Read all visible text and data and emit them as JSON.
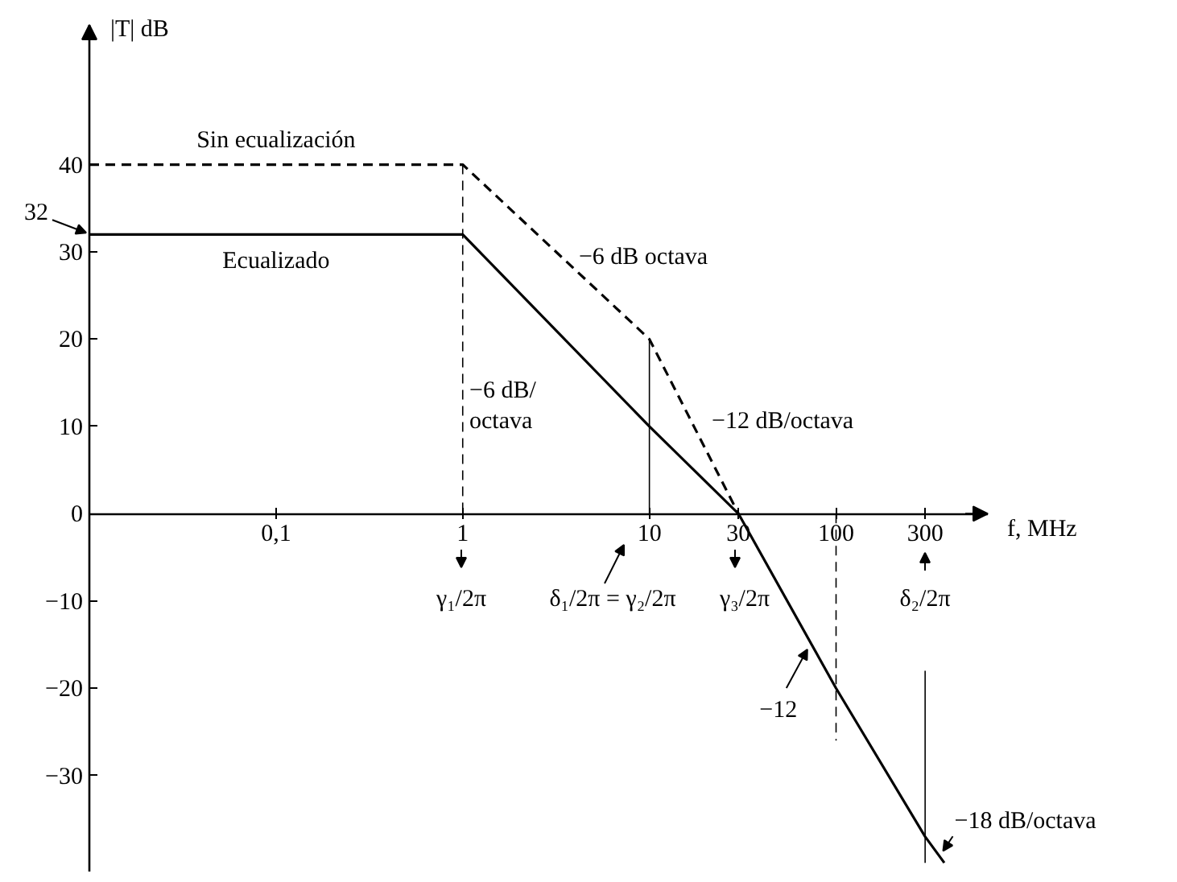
{
  "chart_data": {
    "type": "line",
    "xlabel": "f, MHz",
    "ylabel": "|T| dB",
    "log": "x",
    "xlim": [
      0.01,
      650
    ],
    "ylim": [
      -41,
      56
    ],
    "xticks": [
      {
        "value": 0.1,
        "label": "0,1"
      },
      1,
      10,
      30,
      100,
      300
    ],
    "yticks": [
      {
        "value": -30,
        "label": "−30"
      },
      {
        "value": -20,
        "label": "−20"
      },
      {
        "value": -10,
        "label": "−10"
      },
      0,
      10,
      20,
      30,
      40
    ],
    "series": [
      {
        "name": "Sin ecualización",
        "color": "#000000",
        "line_style": "dashed",
        "x": [
          0.01,
          1,
          10,
          30
        ],
        "values": [
          40,
          40,
          20,
          0
        ]
      },
      {
        "name": "Ecualizado",
        "color": "#000000",
        "line_style": "solid",
        "x": [
          0.01,
          1,
          10,
          30,
          100,
          300,
          380
        ],
        "values": [
          32,
          32,
          10,
          0,
          -20,
          -37,
          -40
        ]
      },
      {
        "color": "#000000",
        "line_style": "dashed",
        "x": [
          1,
          1
        ],
        "values": [
          40,
          0
        ]
      },
      {
        "color": "#000000",
        "line_style": "solid",
        "x": [
          10,
          10
        ],
        "values": [
          20,
          0
        ]
      },
      {
        "color": "#000000",
        "line_style": "dashed",
        "x": [
          100,
          100
        ],
        "values": [
          0,
          -26
        ]
      },
      {
        "color": "#000000",
        "line_style": "solid",
        "x": [
          300,
          300
        ],
        "values": [
          -18,
          -40
        ]
      }
    ],
    "annotations": [
      {
        "text": "32",
        "x": 0.01,
        "y": 32
      },
      {
        "text": "−6 dB octava",
        "x": 3.5,
        "y": 29
      },
      "−6 dB/\noctava",
      {
        "text": "−12 dB/octava",
        "x": 17,
        "y": 10
      },
      {
        "text": "−12",
        "x": 73,
        "y": -15
      },
      {
        "text": "−18 dB/octava",
        "x": 360,
        "y": -39
      },
      "γ₁/2π",
      "δ₁/2π = γ₂/2π",
      "γ₃/2π",
      "δ₂/2π"
    ]
  }
}
